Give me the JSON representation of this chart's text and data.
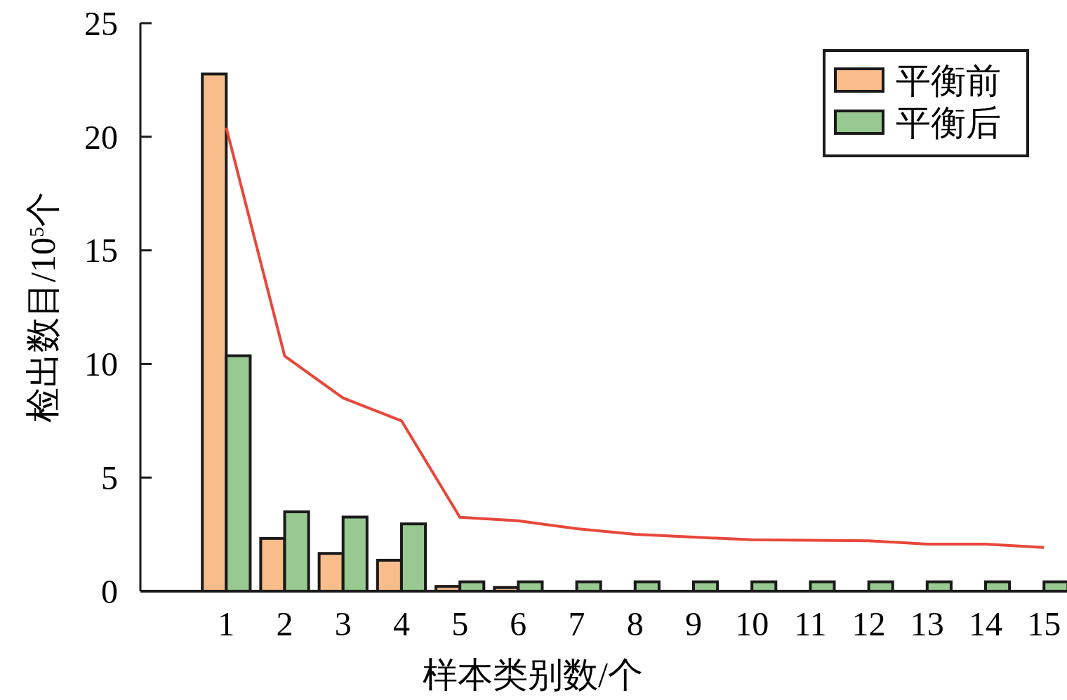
{
  "chart_data": {
    "type": "bar",
    "xlabel": "样本类别数/个",
    "ylabel": "检出数目/10$^{5}$个",
    "x": [
      1,
      2,
      3,
      4,
      5,
      6,
      7,
      8,
      9,
      10,
      11,
      12,
      13,
      14,
      15
    ],
    "xlim": [
      -0.47,
      15.37
    ],
    "xticks": [
      1,
      2,
      3,
      4,
      5,
      6,
      7,
      8,
      9,
      10,
      11,
      12,
      13,
      14,
      15
    ],
    "ylim": [
      0,
      25
    ],
    "yticks": [
      0,
      5,
      10,
      15,
      20,
      25
    ],
    "series": [
      {
        "name": "平衡前",
        "color": "#f8bd8b",
        "values": [
          22.7,
          2.26,
          1.6,
          1.3,
          0.15,
          0.1,
          0,
          0,
          0,
          0,
          0,
          0,
          0,
          0,
          0
        ]
      },
      {
        "name": "平衡后",
        "color": "#98c990",
        "values": [
          10.3,
          3.43,
          3.2,
          2.9,
          0.35,
          0.35,
          0.35,
          0.35,
          0.35,
          0.35,
          0.35,
          0.35,
          0.35,
          0.35,
          0.35
        ]
      },
      {
        "type": "line",
        "color": "#e8473a",
        "values": [
          20.4,
          10.35,
          8.5,
          7.5,
          3.25,
          3.1,
          2.75,
          2.5,
          2.38,
          2.26,
          2.24,
          2.22,
          2.07,
          2.07,
          1.92
        ]
      }
    ],
    "legend": "top right",
    "grid": false
  }
}
